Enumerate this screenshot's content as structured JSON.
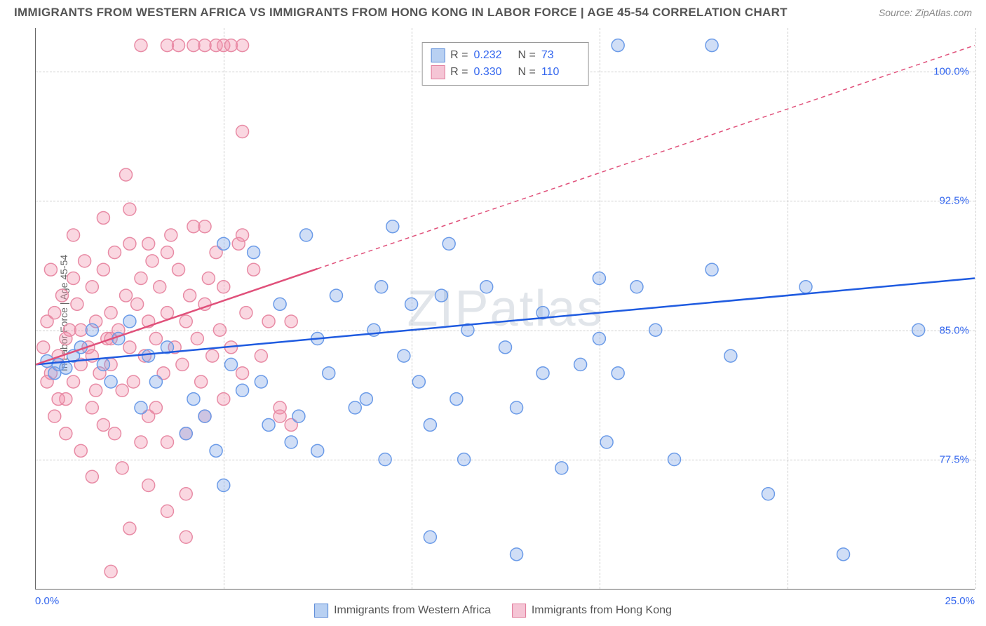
{
  "title": "IMMIGRANTS FROM WESTERN AFRICA VS IMMIGRANTS FROM HONG KONG IN LABOR FORCE | AGE 45-54 CORRELATION CHART",
  "source": "Source: ZipAtlas.com",
  "watermark": "ZIPatlas",
  "y_axis_title": "In Labor Force | Age 45-54",
  "chart": {
    "type": "scatter",
    "xlim": [
      0,
      25
    ],
    "ylim": [
      70,
      102.5
    ],
    "x_ticks": [
      0,
      25
    ],
    "x_tick_labels": [
      "0.0%",
      "25.0%"
    ],
    "y_ticks": [
      77.5,
      85.0,
      92.5,
      100.0
    ],
    "y_tick_labels": [
      "77.5%",
      "85.0%",
      "92.5%",
      "100.0%"
    ],
    "x_grid_positions": [
      5,
      10,
      15,
      20,
      25
    ],
    "background_color": "#ffffff",
    "grid_color": "#cccccc",
    "series": [
      {
        "name": "Immigrants from Western Africa",
        "color_fill": "rgba(120, 160, 230, 0.35)",
        "color_stroke": "#6b9be8",
        "swatch_fill": "#b8d0f2",
        "swatch_stroke": "#5a8ad8",
        "line_color": "#1f5be0",
        "trend_start_y": 83,
        "trend_end_y": 88,
        "dashed_from_x": 25,
        "r": "0.232",
        "n": "73",
        "marker_radius": 9,
        "points": [
          [
            0.3,
            83.2
          ],
          [
            0.5,
            82.5
          ],
          [
            0.6,
            83.0
          ],
          [
            0.8,
            82.8
          ],
          [
            1.0,
            83.5
          ],
          [
            1.2,
            84.0
          ],
          [
            1.5,
            85.0
          ],
          [
            1.8,
            83.0
          ],
          [
            2.0,
            82.0
          ],
          [
            2.2,
            84.5
          ],
          [
            2.5,
            85.5
          ],
          [
            2.8,
            80.5
          ],
          [
            3.0,
            83.5
          ],
          [
            3.2,
            82.0
          ],
          [
            3.5,
            84.0
          ],
          [
            4.0,
            79.0
          ],
          [
            4.2,
            81.0
          ],
          [
            4.5,
            80.0
          ],
          [
            4.8,
            78.0
          ],
          [
            5.0,
            76.0
          ],
          [
            5.0,
            90.0
          ],
          [
            5.2,
            83.0
          ],
          [
            5.5,
            81.5
          ],
          [
            5.8,
            89.5
          ],
          [
            6.0,
            82.0
          ],
          [
            6.2,
            79.5
          ],
          [
            6.5,
            86.5
          ],
          [
            6.8,
            78.5
          ],
          [
            7.0,
            80.0
          ],
          [
            7.2,
            90.5
          ],
          [
            7.5,
            84.5
          ],
          [
            7.8,
            82.5
          ],
          [
            7.5,
            78.0
          ],
          [
            8.0,
            87.0
          ],
          [
            8.5,
            80.5
          ],
          [
            8.8,
            81.0
          ],
          [
            9.0,
            85.0
          ],
          [
            9.2,
            87.5
          ],
          [
            9.5,
            91.0
          ],
          [
            9.8,
            83.5
          ],
          [
            10.0,
            86.5
          ],
          [
            10.2,
            82.0
          ],
          [
            10.5,
            79.5
          ],
          [
            10.5,
            73.0
          ],
          [
            10.8,
            87.0
          ],
          [
            11.0,
            90.0
          ],
          [
            11.2,
            81.0
          ],
          [
            11.4,
            77.5
          ],
          [
            11.5,
            85.0
          ],
          [
            12.5,
            84.0
          ],
          [
            12.8,
            80.5
          ],
          [
            12.8,
            72.0
          ],
          [
            13.5,
            86.0
          ],
          [
            13.5,
            82.5
          ],
          [
            14.0,
            77.0
          ],
          [
            14.5,
            83.0
          ],
          [
            15.0,
            88.0
          ],
          [
            15.0,
            84.5
          ],
          [
            15.2,
            78.5
          ],
          [
            15.5,
            82.5
          ],
          [
            15.5,
            101.5
          ],
          [
            16.0,
            87.5
          ],
          [
            16.5,
            85.0
          ],
          [
            17.0,
            77.5
          ],
          [
            18.0,
            88.5
          ],
          [
            18.0,
            101.5
          ],
          [
            18.5,
            83.5
          ],
          [
            19.5,
            75.5
          ],
          [
            20.5,
            87.5
          ],
          [
            21.5,
            72.0
          ],
          [
            23.5,
            85.0
          ],
          [
            9.3,
            77.5
          ],
          [
            12.0,
            87.5
          ]
        ]
      },
      {
        "name": "Immigrants from Hong Kong",
        "color_fill": "rgba(240, 140, 170, 0.35)",
        "color_stroke": "#e88ba5",
        "swatch_fill": "#f5c5d5",
        "swatch_stroke": "#e07a9a",
        "line_color": "#e0507a",
        "trend_start_y": 83,
        "trend_end_y": 101.5,
        "dashed_from_x": 7.5,
        "r": "0.330",
        "n": "110",
        "marker_radius": 9,
        "points": [
          [
            0.2,
            84.0
          ],
          [
            0.3,
            85.5
          ],
          [
            0.4,
            82.5
          ],
          [
            0.5,
            86.0
          ],
          [
            0.6,
            83.5
          ],
          [
            0.7,
            87.0
          ],
          [
            0.8,
            84.5
          ],
          [
            0.8,
            81.0
          ],
          [
            0.9,
            85.0
          ],
          [
            1.0,
            88.0
          ],
          [
            1.0,
            82.0
          ],
          [
            1.1,
            86.5
          ],
          [
            1.2,
            83.0
          ],
          [
            1.3,
            89.0
          ],
          [
            1.4,
            84.0
          ],
          [
            1.5,
            87.5
          ],
          [
            1.5,
            80.5
          ],
          [
            1.6,
            85.5
          ],
          [
            1.7,
            82.5
          ],
          [
            1.8,
            88.5
          ],
          [
            1.8,
            79.5
          ],
          [
            1.9,
            84.5
          ],
          [
            2.0,
            86.0
          ],
          [
            2.0,
            83.0
          ],
          [
            2.1,
            89.5
          ],
          [
            2.2,
            85.0
          ],
          [
            2.3,
            81.5
          ],
          [
            2.4,
            87.0
          ],
          [
            2.5,
            84.0
          ],
          [
            2.5,
            90.0
          ],
          [
            2.6,
            82.0
          ],
          [
            2.7,
            86.5
          ],
          [
            2.8,
            88.0
          ],
          [
            2.9,
            83.5
          ],
          [
            3.0,
            85.5
          ],
          [
            3.0,
            80.0
          ],
          [
            3.1,
            89.0
          ],
          [
            3.2,
            84.5
          ],
          [
            3.3,
            87.5
          ],
          [
            3.4,
            82.5
          ],
          [
            3.5,
            86.0
          ],
          [
            3.5,
            78.5
          ],
          [
            3.6,
            90.5
          ],
          [
            3.7,
            84.0
          ],
          [
            3.8,
            88.5
          ],
          [
            3.9,
            83.0
          ],
          [
            4.0,
            85.5
          ],
          [
            4.0,
            79.0
          ],
          [
            4.1,
            87.0
          ],
          [
            4.2,
            91.0
          ],
          [
            4.3,
            84.5
          ],
          [
            4.4,
            82.0
          ],
          [
            4.5,
            86.5
          ],
          [
            4.5,
            80.0
          ],
          [
            4.6,
            88.0
          ],
          [
            4.7,
            83.5
          ],
          [
            4.8,
            89.5
          ],
          [
            4.9,
            85.0
          ],
          [
            5.0,
            87.5
          ],
          [
            5.0,
            81.0
          ],
          [
            5.2,
            84.0
          ],
          [
            5.4,
            90.0
          ],
          [
            5.5,
            82.5
          ],
          [
            5.6,
            86.0
          ],
          [
            5.8,
            88.5
          ],
          [
            6.0,
            83.5
          ],
          [
            6.2,
            85.5
          ],
          [
            6.5,
            80.5
          ],
          [
            2.0,
            71.0
          ],
          [
            2.4,
            94.0
          ],
          [
            2.5,
            73.5
          ],
          [
            2.8,
            101.5
          ],
          [
            3.5,
            101.5
          ],
          [
            3.8,
            101.5
          ],
          [
            4.0,
            73.0
          ],
          [
            4.2,
            101.5
          ],
          [
            4.5,
            101.5
          ],
          [
            4.8,
            101.5
          ],
          [
            5.0,
            101.5
          ],
          [
            5.2,
            101.5
          ],
          [
            5.5,
            96.5
          ],
          [
            5.5,
            101.5
          ],
          [
            1.2,
            78.0
          ],
          [
            1.5,
            76.5
          ],
          [
            2.3,
            77.0
          ],
          [
            2.8,
            78.5
          ],
          [
            3.2,
            80.5
          ],
          [
            0.5,
            80.0
          ],
          [
            0.8,
            79.0
          ],
          [
            1.6,
            81.5
          ],
          [
            2.1,
            79.0
          ],
          [
            3.0,
            76.0
          ],
          [
            3.5,
            74.5
          ],
          [
            4.0,
            75.5
          ],
          [
            6.5,
            80.0
          ],
          [
            6.8,
            79.5
          ],
          [
            6.8,
            85.5
          ],
          [
            0.4,
            88.5
          ],
          [
            1.0,
            90.5
          ],
          [
            1.8,
            91.5
          ],
          [
            2.5,
            92.0
          ],
          [
            3.0,
            90.0
          ],
          [
            3.5,
            89.5
          ],
          [
            4.5,
            91.0
          ],
          [
            5.5,
            90.5
          ],
          [
            0.3,
            82.0
          ],
          [
            0.6,
            81.0
          ],
          [
            1.2,
            85.0
          ],
          [
            1.5,
            83.5
          ],
          [
            2.0,
            84.5
          ]
        ]
      }
    ]
  },
  "legend_top": [
    {
      "r_label": "R =",
      "r_val": "0.232",
      "n_label": "N =",
      "n_val": "73"
    },
    {
      "r_label": "R =",
      "r_val": "0.330",
      "n_label": "N =",
      "n_val": "110"
    }
  ],
  "legend_bottom": [
    {
      "label": "Immigrants from Western Africa"
    },
    {
      "label": "Immigrants from Hong Kong"
    }
  ]
}
